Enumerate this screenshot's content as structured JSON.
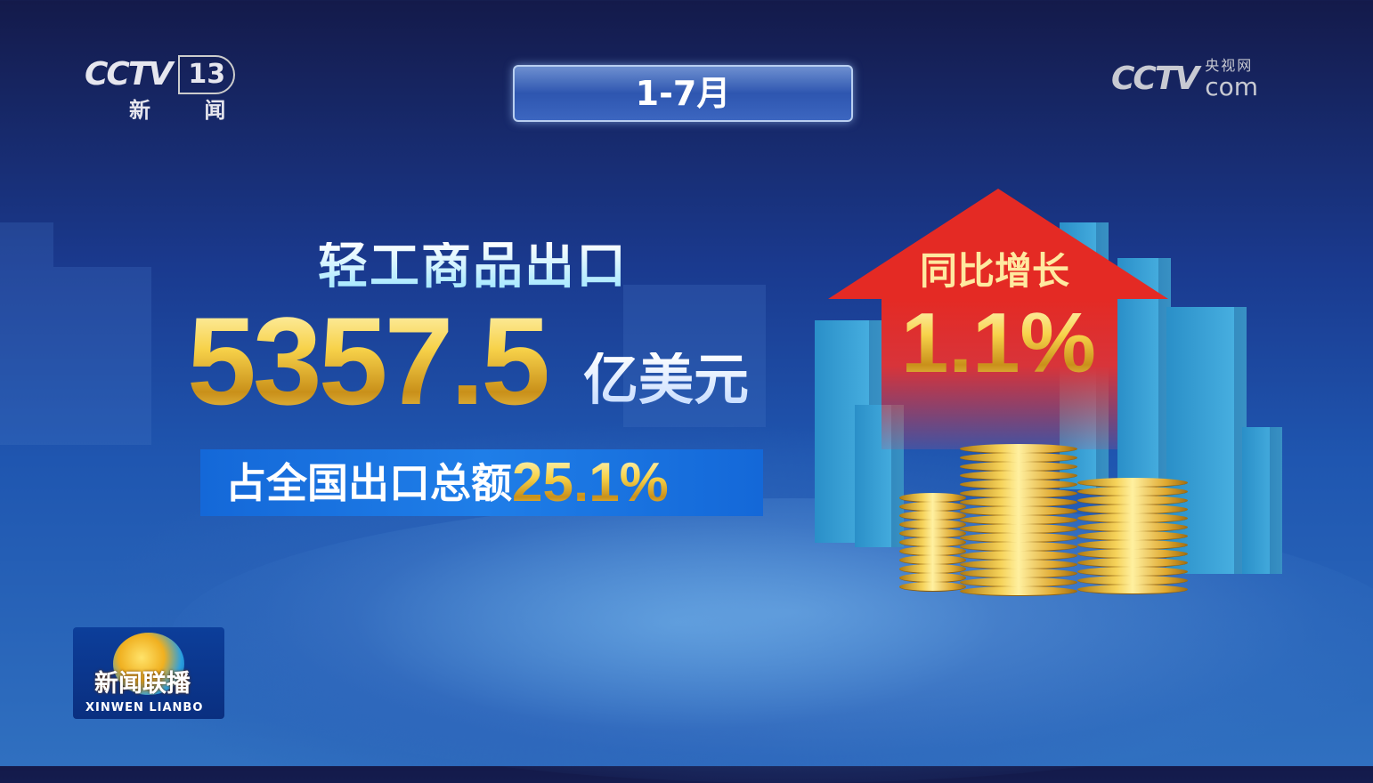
{
  "logos": {
    "channel": {
      "brand": "CCTV",
      "number": "13",
      "name": "新 闻"
    },
    "site": {
      "brand": "CCTV",
      "cn": "央视网",
      "suffix": "com"
    },
    "program": {
      "cn": "新闻联播",
      "en": "XINWEN LIANBO"
    }
  },
  "period": "1-7月",
  "headline": "轻工商品出口",
  "amount": {
    "value": "5357.5",
    "unit": "亿美元"
  },
  "share": {
    "label": "占全国出口总额",
    "value": "25.1%"
  },
  "growth": {
    "label": "同比增长",
    "value": "1.1%"
  },
  "colors": {
    "gold": "#f7d24a",
    "arrow_red": "#e42a24",
    "banner_blue": "#1f7ee8",
    "background": "#1a3a8f"
  }
}
